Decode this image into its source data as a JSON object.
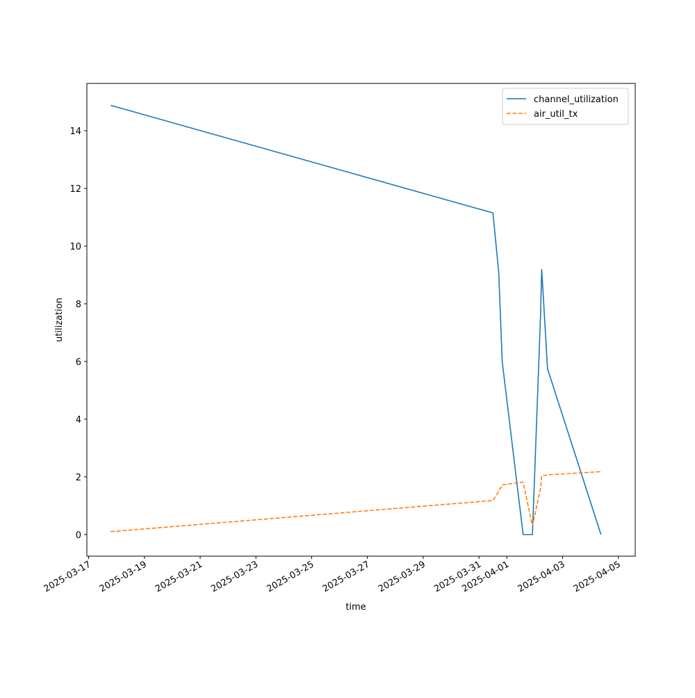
{
  "chart_data": {
    "type": "line",
    "xlabel": "time",
    "ylabel": "utilization",
    "x": [
      "2025-03-17T19:00",
      "2025-03-31T12:00",
      "2025-03-31T17:00",
      "2025-03-31T20:00",
      "2025-04-01T14:00",
      "2025-04-01T22:00",
      "2025-04-02T05:00",
      "2025-04-02T06:00",
      "2025-04-02T11:00",
      "2025-04-04T09:00"
    ],
    "series": [
      {
        "name": "channel_utilization",
        "color": "#1f77b4",
        "dash": "solid",
        "values": [
          14.88,
          11.15,
          9.1,
          6.0,
          0,
          0,
          7.6,
          9.2,
          5.75,
          0
        ]
      },
      {
        "name": "air_util_tx",
        "color": "#ff7f0e",
        "dash": "dashed",
        "values": [
          0.1,
          1.18,
          1.5,
          1.72,
          1.82,
          0.3,
          1.6,
          2.03,
          2.07,
          2.18
        ]
      }
    ],
    "xlim": [
      "2025-03-16T22:30",
      "2025-04-05T14:30"
    ],
    "xticks": [
      "2025-03-17",
      "2025-03-19",
      "2025-03-21",
      "2025-03-23",
      "2025-03-25",
      "2025-03-27",
      "2025-03-29",
      "2025-03-31",
      "2025-04-01",
      "2025-04-03",
      "2025-04-05"
    ],
    "ylim": [
      -0.75,
      15.64
    ],
    "yticks": [
      0,
      2,
      4,
      6,
      8,
      10,
      12,
      14
    ],
    "legend": "upper right"
  }
}
